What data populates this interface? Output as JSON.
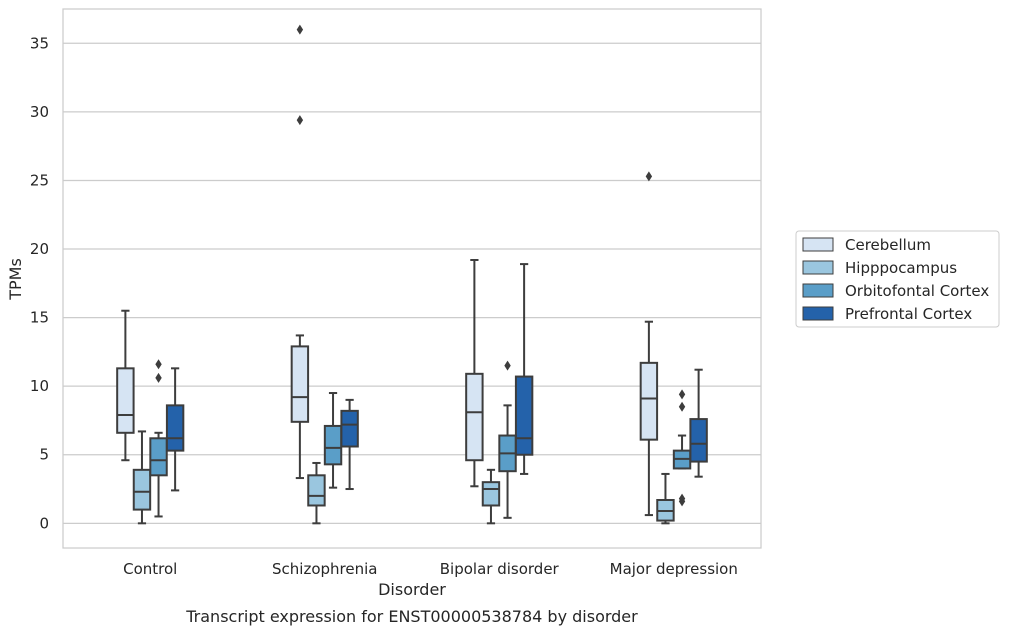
{
  "chart_data": {
    "type": "box",
    "title": "",
    "caption": "Transcript expression for ENST00000538784 by disorder",
    "xlabel": "Disorder",
    "ylabel": "TPMs",
    "ylim": [
      -1.8,
      37.5
    ],
    "yticks": [
      0,
      5,
      10,
      15,
      20,
      25,
      30,
      35
    ],
    "grid": "horizontal",
    "legend_position": "right",
    "categories": [
      "Control",
      "Schizophrenia",
      "Bipolar disorder",
      "Major depression"
    ],
    "series": [
      {
        "name": "Cerebellum",
        "color": "#d6e4f3",
        "boxes": [
          {
            "whislo": 4.6,
            "q1": 6.6,
            "med": 7.9,
            "q3": 11.3,
            "whishi": 15.5,
            "fliers": []
          },
          {
            "whislo": 3.3,
            "q1": 7.4,
            "med": 9.2,
            "q3": 12.9,
            "whishi": 13.7,
            "fliers": [
              29.4,
              36.0
            ]
          },
          {
            "whislo": 2.7,
            "q1": 4.6,
            "med": 8.1,
            "q3": 10.9,
            "whishi": 19.2,
            "fliers": []
          },
          {
            "whislo": 0.6,
            "q1": 6.1,
            "med": 9.1,
            "q3": 11.7,
            "whishi": 14.7,
            "fliers": [
              25.3
            ]
          }
        ]
      },
      {
        "name": "Hipppocampus",
        "color": "#9ac6df",
        "boxes": [
          {
            "whislo": 0.0,
            "q1": 1.0,
            "med": 2.3,
            "q3": 3.9,
            "whishi": 6.7,
            "fliers": []
          },
          {
            "whislo": 0.0,
            "q1": 1.3,
            "med": 2.0,
            "q3": 3.5,
            "whishi": 4.4,
            "fliers": []
          },
          {
            "whislo": 0.0,
            "q1": 1.3,
            "med": 2.5,
            "q3": 3.0,
            "whishi": 3.9,
            "fliers": []
          },
          {
            "whislo": 0.0,
            "q1": 0.2,
            "med": 0.9,
            "q3": 1.7,
            "whishi": 3.6,
            "fliers": []
          }
        ]
      },
      {
        "name": "Orbitofontal Cortex",
        "color": "#5a9ec8",
        "boxes": [
          {
            "whislo": 0.5,
            "q1": 3.5,
            "med": 4.6,
            "q3": 6.2,
            "whishi": 6.6,
            "fliers": [
              10.6,
              11.6
            ]
          },
          {
            "whislo": 2.6,
            "q1": 4.3,
            "med": 5.5,
            "q3": 7.1,
            "whishi": 9.5,
            "fliers": []
          },
          {
            "whislo": 0.4,
            "q1": 3.8,
            "med": 5.1,
            "q3": 6.4,
            "whishi": 8.6,
            "fliers": [
              11.5
            ]
          },
          {
            "whislo": 4.0,
            "q1": 4.0,
            "med": 4.7,
            "q3": 5.3,
            "whishi": 6.4,
            "fliers": [
              1.6,
              1.8,
              8.5,
              9.4
            ]
          }
        ]
      },
      {
        "name": "Prefrontal Cortex",
        "color": "#2462aa",
        "boxes": [
          {
            "whislo": 2.4,
            "q1": 5.3,
            "med": 6.2,
            "q3": 8.6,
            "whishi": 11.3,
            "fliers": []
          },
          {
            "whislo": 2.5,
            "q1": 5.6,
            "med": 7.2,
            "q3": 8.2,
            "whishi": 9.0,
            "fliers": []
          },
          {
            "whislo": 3.6,
            "q1": 5.0,
            "med": 6.2,
            "q3": 10.7,
            "whishi": 18.9,
            "fliers": []
          },
          {
            "whislo": 3.4,
            "q1": 4.5,
            "med": 5.8,
            "q3": 7.6,
            "whishi": 11.2,
            "fliers": []
          }
        ]
      }
    ]
  }
}
